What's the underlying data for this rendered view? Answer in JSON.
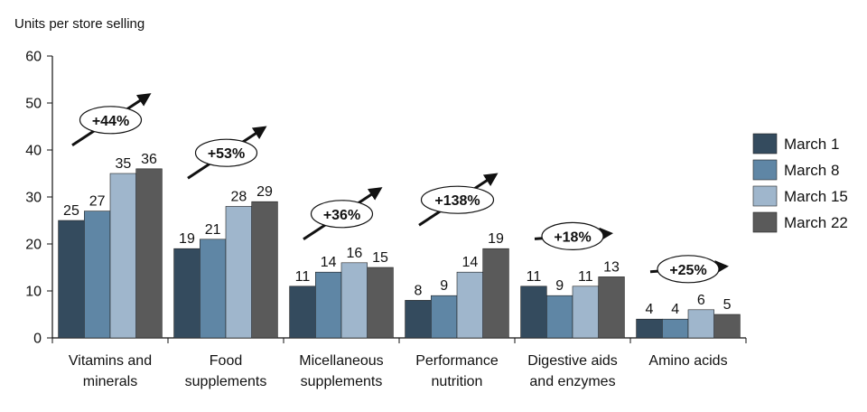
{
  "chart_data": {
    "type": "bar",
    "ylabel": "Units per store selling",
    "ylim": [
      0,
      60
    ],
    "yticks": [
      0,
      10,
      20,
      30,
      40,
      50,
      60
    ],
    "grid": false,
    "legend_position": "right",
    "categories": [
      [
        "Vitamins and",
        "minerals"
      ],
      [
        "Food",
        "supplements"
      ],
      [
        "Micellaneous",
        "supplements"
      ],
      [
        "Performance",
        "nutrition"
      ],
      [
        "Digestive aids",
        "and enzymes"
      ],
      [
        "Amino acids"
      ]
    ],
    "series": [
      {
        "name": "March 1",
        "color": "#344b5e",
        "values": [
          25,
          19,
          11,
          8,
          11,
          4
        ]
      },
      {
        "name": "March 8",
        "color": "#5f86a5",
        "values": [
          27,
          21,
          14,
          9,
          9,
          4
        ]
      },
      {
        "name": "March 15",
        "color": "#9fb6cc",
        "values": [
          35,
          28,
          16,
          14,
          11,
          6
        ]
      },
      {
        "name": "March 22",
        "color": "#5a5a5a",
        "values": [
          36,
          29,
          15,
          19,
          13,
          5
        ]
      }
    ],
    "annotations": [
      "+44%",
      "+53%",
      "+36%",
      "+138%",
      "+18%",
      "+25%"
    ]
  }
}
